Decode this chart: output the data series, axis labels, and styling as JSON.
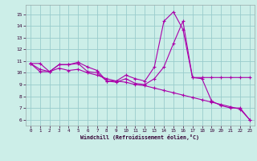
{
  "bg_color": "#cceee8",
  "line_color": "#aa00aa",
  "grid_color": "#99cccc",
  "xlabel": "Windchill (Refroidissement éolien,°C)",
  "ylim": [
    5.5,
    15.8
  ],
  "yticks": [
    6,
    7,
    8,
    9,
    10,
    11,
    12,
    13,
    14,
    15
  ],
  "xlim": [
    -0.5,
    23.5
  ],
  "xticks": [
    0,
    1,
    2,
    3,
    4,
    5,
    6,
    7,
    8,
    9,
    10,
    11,
    12,
    13,
    14,
    15,
    16,
    17,
    18,
    19,
    20,
    21,
    22,
    23
  ],
  "series1_x": [
    0,
    1,
    2,
    3,
    4,
    5,
    6,
    7,
    8,
    9,
    10,
    11,
    12,
    13,
    14,
    15,
    16,
    17,
    18,
    19,
    20,
    21,
    22,
    23
  ],
  "series1_y": [
    10.8,
    10.8,
    10.1,
    10.7,
    10.7,
    10.9,
    10.5,
    10.2,
    9.3,
    9.3,
    9.8,
    9.5,
    9.3,
    10.5,
    14.4,
    15.2,
    13.7,
    9.6,
    9.6,
    9.6,
    9.6,
    9.6,
    9.6,
    9.6
  ],
  "series2_x": [
    0,
    1,
    2,
    3,
    4,
    5,
    6,
    7,
    8,
    9,
    10,
    11,
    12,
    13,
    14,
    15,
    16,
    17,
    18,
    19,
    20,
    21,
    22,
    23
  ],
  "series2_y": [
    10.8,
    10.1,
    10.1,
    10.7,
    10.7,
    10.8,
    10.1,
    10.0,
    9.3,
    9.2,
    9.5,
    9.1,
    9.0,
    9.5,
    10.5,
    12.5,
    14.4,
    9.6,
    9.5,
    7.6,
    7.2,
    7.0,
    7.0,
    6.0
  ],
  "series3_x": [
    0,
    1,
    2,
    3,
    4,
    5,
    6,
    7,
    8,
    9,
    10,
    11,
    12,
    13,
    14,
    15,
    16,
    17,
    18,
    19,
    20,
    21,
    22,
    23
  ],
  "series3_y": [
    10.8,
    10.3,
    10.1,
    10.4,
    10.2,
    10.3,
    10.0,
    9.8,
    9.5,
    9.3,
    9.2,
    9.0,
    8.9,
    8.7,
    8.5,
    8.3,
    8.1,
    7.9,
    7.7,
    7.5,
    7.3,
    7.1,
    6.9,
    6.0
  ]
}
